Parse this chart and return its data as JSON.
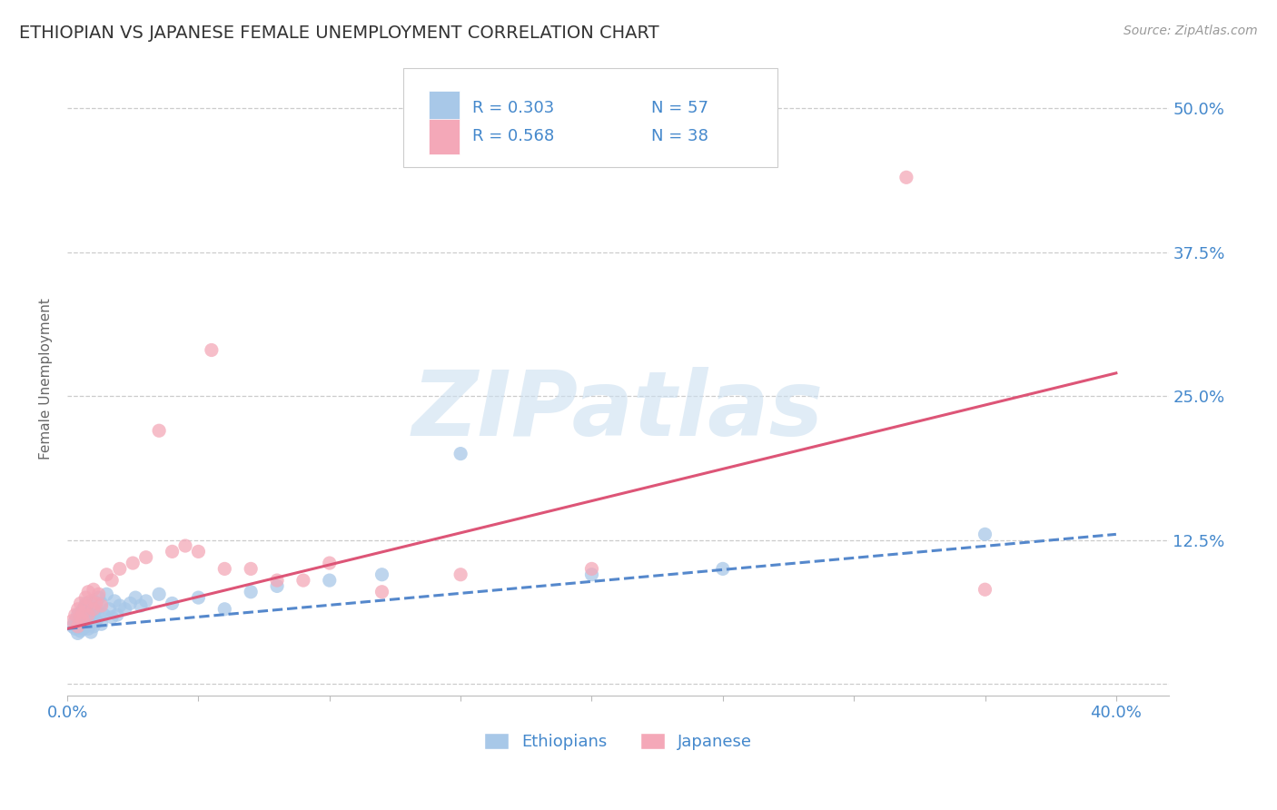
{
  "title": "ETHIOPIAN VS JAPANESE FEMALE UNEMPLOYMENT CORRELATION CHART",
  "source_text": "Source: ZipAtlas.com",
  "ylabel": "Female Unemployment",
  "xlim": [
    0.0,
    0.42
  ],
  "ylim": [
    -0.01,
    0.54
  ],
  "ytick_positions": [
    0.0,
    0.125,
    0.25,
    0.375,
    0.5
  ],
  "ytick_labels": [
    "",
    "12.5%",
    "25.0%",
    "37.5%",
    "50.0%"
  ],
  "ethiopians_R": 0.303,
  "ethiopians_N": 57,
  "japanese_R": 0.568,
  "japanese_N": 38,
  "ethiopians_color": "#a8c8e8",
  "japanese_color": "#f4a8b8",
  "trendline_eth_color": "#5588cc",
  "trendline_jap_color": "#dd5577",
  "label_color": "#4488cc",
  "background_color": "#ffffff",
  "watermark": "ZIPatlas",
  "trendline_eth_y0": 0.048,
  "trendline_eth_y1": 0.13,
  "trendline_jap_y0": 0.048,
  "trendline_jap_y1": 0.27
}
